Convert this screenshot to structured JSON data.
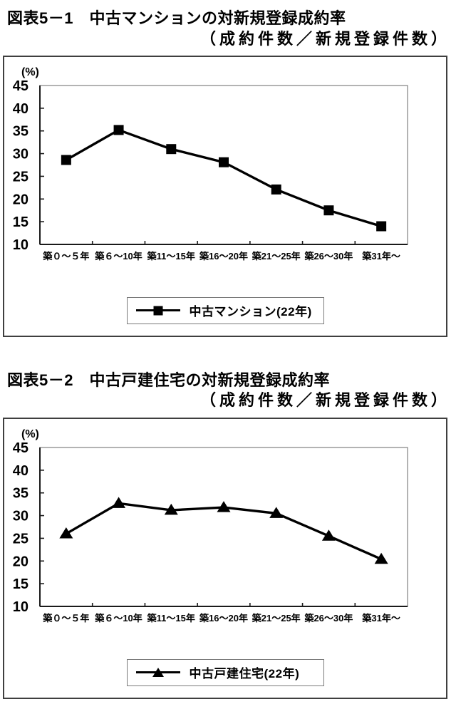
{
  "chart_data": [
    {
      "type": "line",
      "title": "図表5－1　中古マンションの対新規登録成約率",
      "subtitle": "（成約件数／新規登録件数）",
      "categories": [
        "築０～５年",
        "築６～10年",
        "築11～15年",
        "築16～20年",
        "築21～25年",
        "築26～30年",
        "築31年～"
      ],
      "series": [
        {
          "name": "中古マンション(22年)",
          "values": [
            28.6,
            35.2,
            31.0,
            28.1,
            22.1,
            17.5,
            14.0
          ]
        }
      ],
      "ylabel": "(%)",
      "ylim": [
        10,
        45
      ],
      "yticks": [
        10,
        15,
        20,
        25,
        30,
        35,
        40,
        45
      ],
      "marker": "square",
      "line_color": "#000000",
      "grid": "off",
      "legend_position": "bottom"
    },
    {
      "type": "line",
      "title": "図表5－2　中古戸建住宅の対新規登録成約率",
      "subtitle": "（成約件数／新規登録件数）",
      "categories": [
        "築０～５年",
        "築６～10年",
        "築11～15年",
        "築16～20年",
        "築21～25年",
        "築26～30年",
        "築31年～"
      ],
      "series": [
        {
          "name": "中古戸建住宅(22年)",
          "values": [
            26.0,
            32.7,
            31.2,
            31.8,
            30.5,
            25.5,
            20.4
          ]
        }
      ],
      "ylabel": "(%)",
      "ylim": [
        10,
        45
      ],
      "yticks": [
        10,
        15,
        20,
        25,
        30,
        35,
        40,
        45
      ],
      "marker": "triangle",
      "line_color": "#000000",
      "grid": "off",
      "legend_position": "bottom"
    }
  ],
  "colors": {
    "line": "#000000",
    "marker": "#000000",
    "plot_frame": "#8a8a8a",
    "axis": "#1a1a1a",
    "box_border": "#3f3f3f",
    "background": "#ffffff"
  }
}
